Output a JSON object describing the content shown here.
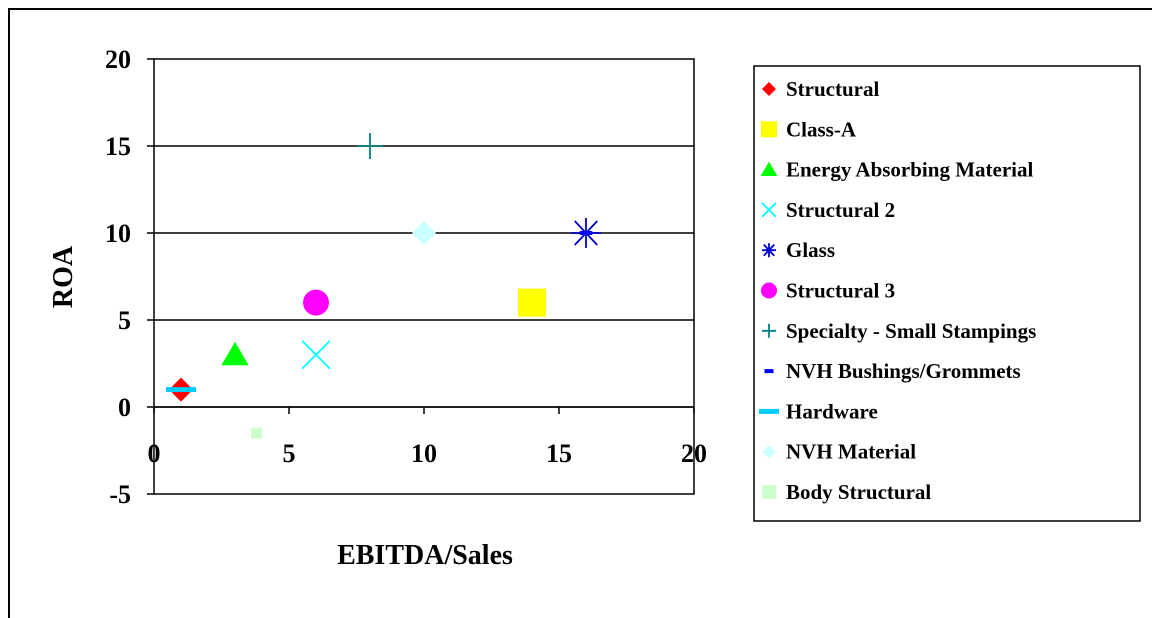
{
  "chart_data": {
    "type": "scatter",
    "title": "",
    "xlabel": "EBITDA/Sales",
    "ylabel": "ROA",
    "xlim": [
      0,
      20
    ],
    "ylim": [
      -5,
      20
    ],
    "xticks": [
      "0",
      "5",
      "10",
      "15",
      "20"
    ],
    "yticks": [
      "-5",
      "0",
      "5",
      "10",
      "15",
      "20"
    ],
    "grid": "horizontal major gridlines",
    "legend_position": "right",
    "series": [
      {
        "name": "Structural",
        "marker": "diamond",
        "color": "#ff0000",
        "x": [
          1
        ],
        "y": [
          1
        ]
      },
      {
        "name": "Class-A",
        "marker": "square",
        "color": "#ffff00",
        "x": [
          14
        ],
        "y": [
          6
        ]
      },
      {
        "name": "Energy Absorbing Material",
        "marker": "triangle",
        "color": "#00ff00",
        "x": [
          3
        ],
        "y": [
          3
        ]
      },
      {
        "name": "Structural 2",
        "marker": "x",
        "color": "#00ffff",
        "x": [
          6
        ],
        "y": [
          3
        ]
      },
      {
        "name": "Glass",
        "marker": "star",
        "color": "#0000cc",
        "x": [
          16
        ],
        "y": [
          10
        ]
      },
      {
        "name": "Structural 3",
        "marker": "circle",
        "color": "#ff00ff",
        "x": [
          6
        ],
        "y": [
          6
        ]
      },
      {
        "name": "Specialty - Small Stampings",
        "marker": "plus",
        "color": "#008080",
        "x": [
          8
        ],
        "y": [
          15
        ]
      },
      {
        "name": "NVH Bushings/Grommets",
        "marker": "short-dash",
        "color": "#0000ff",
        "x": [
          16
        ],
        "y": [
          10
        ]
      },
      {
        "name": "Hardware",
        "marker": "long-dash",
        "color": "#00ccff",
        "x": [
          1
        ],
        "y": [
          1
        ]
      },
      {
        "name": "NVH Material",
        "marker": "diamond",
        "color": "#ccffff",
        "x": [
          10
        ],
        "y": [
          10
        ]
      },
      {
        "name": "Body Structural",
        "marker": "square-small",
        "color": "#ccffcc",
        "x": [
          3.8
        ],
        "y": [
          -1.5
        ]
      }
    ]
  }
}
